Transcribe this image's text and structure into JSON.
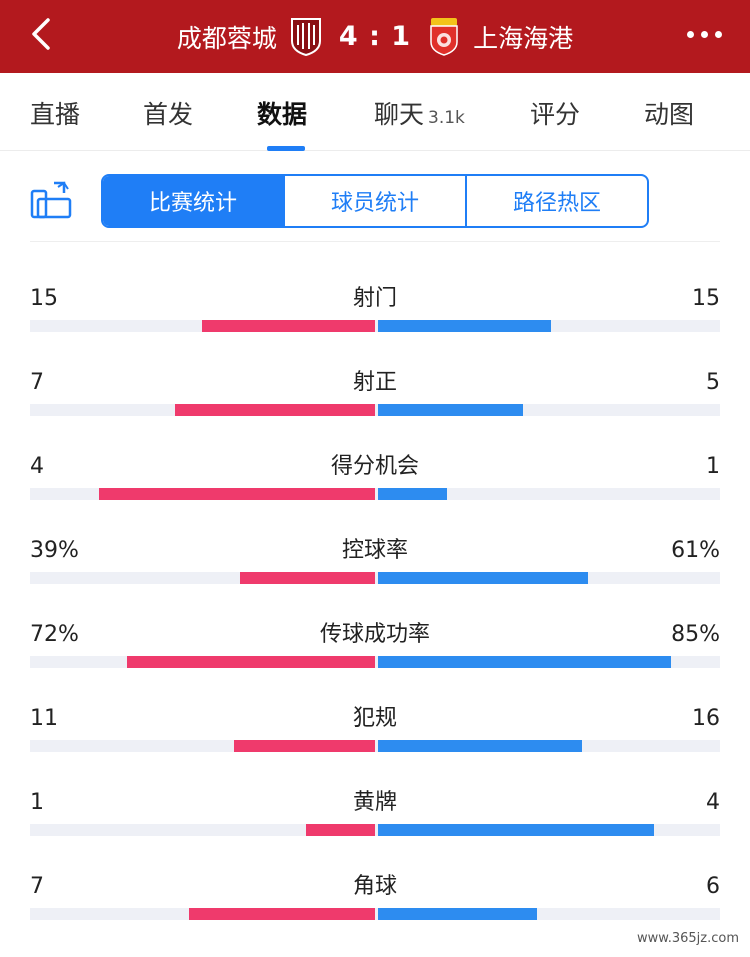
{
  "header": {
    "home_team": "成都蓉城",
    "score": "4 : 1",
    "away_team": "上海海港"
  },
  "tabs": [
    {
      "label": "直播"
    },
    {
      "label": "首发"
    },
    {
      "label": "数据",
      "active": true
    },
    {
      "label": "聊天",
      "count": "3.1k"
    },
    {
      "label": "评分"
    },
    {
      "label": "动图"
    }
  ],
  "segments": [
    {
      "label": "比赛统计",
      "active": true
    },
    {
      "label": "球员统计"
    },
    {
      "label": "路径热区"
    }
  ],
  "colors": {
    "header_bg": "#b3191e",
    "accent": "#1f7ef6",
    "home_bar": "#ef3a6c",
    "away_bar": "#2d8cf0"
  },
  "stats": [
    {
      "label": "射门",
      "left": "15",
      "right": "15",
      "left_fill": 0.5,
      "right_fill": 0.5
    },
    {
      "label": "射正",
      "left": "7",
      "right": "5",
      "left_fill": 0.58,
      "right_fill": 0.42
    },
    {
      "label": "得分机会",
      "left": "4",
      "right": "1",
      "left_fill": 0.8,
      "right_fill": 0.2
    },
    {
      "label": "控球率",
      "left": "39%",
      "right": "61%",
      "left_fill": 0.39,
      "right_fill": 0.61
    },
    {
      "label": "传球成功率",
      "left": "72%",
      "right": "85%",
      "left_fill": 0.72,
      "right_fill": 0.85
    },
    {
      "label": "犯规",
      "left": "11",
      "right": "16",
      "left_fill": 0.41,
      "right_fill": 0.59
    },
    {
      "label": "黄牌",
      "left": "1",
      "right": "4",
      "left_fill": 0.2,
      "right_fill": 0.8
    },
    {
      "label": "角球",
      "left": "7",
      "right": "6",
      "left_fill": 0.54,
      "right_fill": 0.46
    }
  ],
  "watermark": "www.365jz.com"
}
